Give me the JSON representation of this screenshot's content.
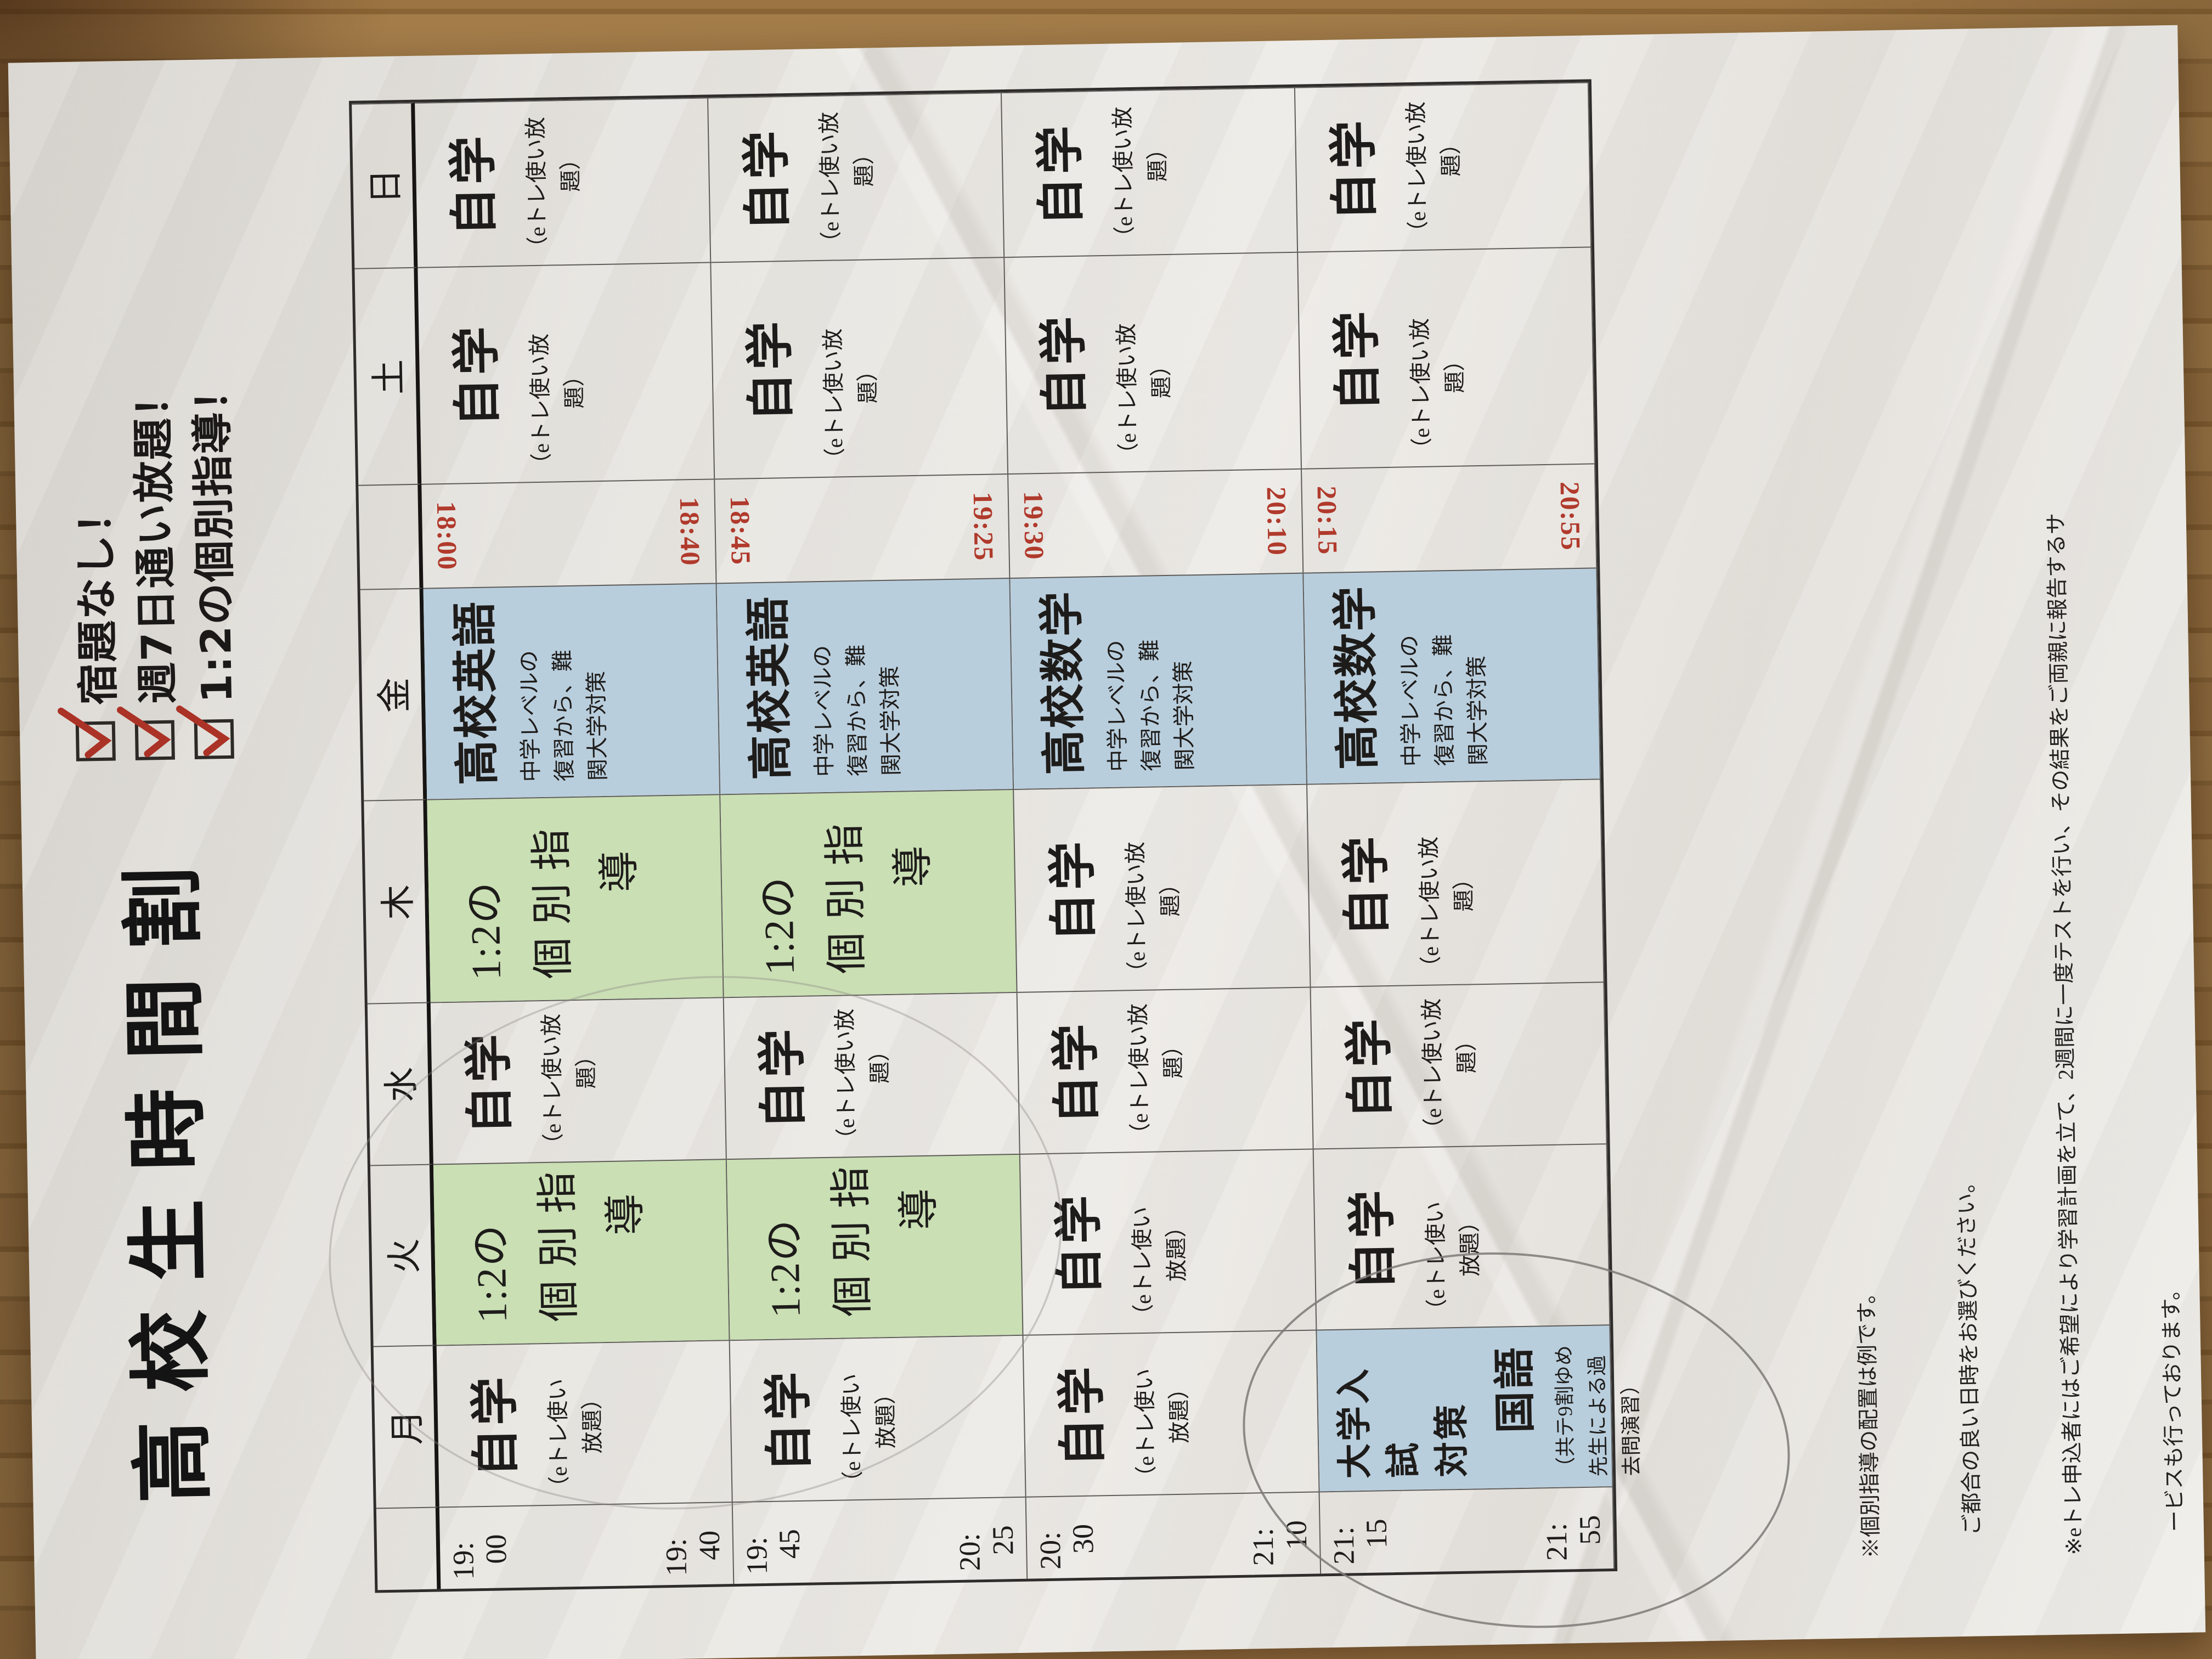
{
  "title": {
    "text": "高校生時間割"
  },
  "checklist": {
    "check_icon": "red-checkmark",
    "items": [
      {
        "label": "宿題なし！"
      },
      {
        "label": "週7日通い放題！"
      },
      {
        "label": "1:2の個別指導！"
      }
    ]
  },
  "timetable": {
    "day_headers": [
      "月",
      "火",
      "水",
      "木",
      "金",
      "土",
      "日"
    ],
    "time_rows": [
      {
        "start": [
          "19:",
          "00"
        ],
        "end": [
          "19:",
          "40"
        ],
        "fri_times": [
          "18:00",
          "18:40"
        ]
      },
      {
        "start": [
          "19:",
          "45"
        ],
        "end": [
          "20:",
          "25"
        ],
        "fri_times": [
          "18:45",
          "19:25"
        ]
      },
      {
        "start": [
          "20:",
          "30"
        ],
        "end": [
          "21:",
          "10"
        ],
        "fri_times": [
          "19:30",
          "20:10"
        ]
      },
      {
        "start": [
          "21:",
          "15"
        ],
        "end": [
          "21:",
          "55"
        ],
        "fri_times": [
          "20:15",
          "20:55"
        ]
      }
    ],
    "colors": {
      "class_blue": "#b9cedd",
      "kobetsu_green": "#cadfb4",
      "fri_time_red": "#b03a2c"
    },
    "cell_types": {
      "self_a": {
        "style": "self",
        "main": "自学",
        "ann": [
          "（eトレ使い放",
          "　　　題）"
        ]
      },
      "self_b": {
        "style": "self",
        "main": "自学",
        "ann": [
          "（eトレ使い",
          "　　放題）"
        ]
      },
      "kobetsu": {
        "style": "kobetsu",
        "bg": "kobetsu_green",
        "lines": [
          "1:2の",
          "個 別 指",
          "　　導"
        ]
      },
      "eigo": {
        "style": "classcell",
        "bg": "class_blue",
        "main": "高校英語",
        "desc": [
          "中学レベルの",
          "復習から、難",
          "関大学対策"
        ]
      },
      "sugaku": {
        "style": "classcell",
        "bg": "class_blue",
        "main": "高校数学",
        "desc": [
          "中学レベルの",
          "復習から、難",
          "関大学対策"
        ]
      },
      "kokugo": {
        "style": "kokugo",
        "bg": "class_blue",
        "top_lines": [
          "大学入試",
          "対策"
        ],
        "subject": "国語",
        "ann": [
          "（共テ9割ゆめ",
          "先生による過",
          "去問演習）"
        ]
      }
    },
    "grid": {
      "月": [
        "self_b",
        "self_b",
        "self_b",
        "kokugo"
      ],
      "火": [
        "kobetsu",
        "kobetsu",
        "self_b",
        "self_b"
      ],
      "水": [
        "self_a",
        "self_a",
        "self_a",
        "self_a"
      ],
      "木": [
        "kobetsu",
        "kobetsu",
        "self_a",
        "self_a"
      ],
      "金": [
        "eigo",
        "eigo",
        "sugaku",
        "sugaku"
      ],
      "土": [
        "self_a",
        "self_a",
        "self_a",
        "self_a"
      ],
      "日": [
        "self_a",
        "self_a",
        "self_a",
        "self_a"
      ]
    }
  },
  "notes": {
    "lines": [
      "※個別指導の配置は例です。",
      "　ご都合の良い日時をお選びください。",
      "※eトレ申込者にはご希望により学習計画を立て、2週間に一度テストを行い、その結果をご両親に報告するサ",
      "　ービスも行っております。"
    ]
  },
  "annotations": {
    "pencil_circles": [
      {
        "target": "monday-2115-kokugo-cell"
      },
      {
        "target": "tuesday-wednesday-upper-cells"
      }
    ]
  }
}
